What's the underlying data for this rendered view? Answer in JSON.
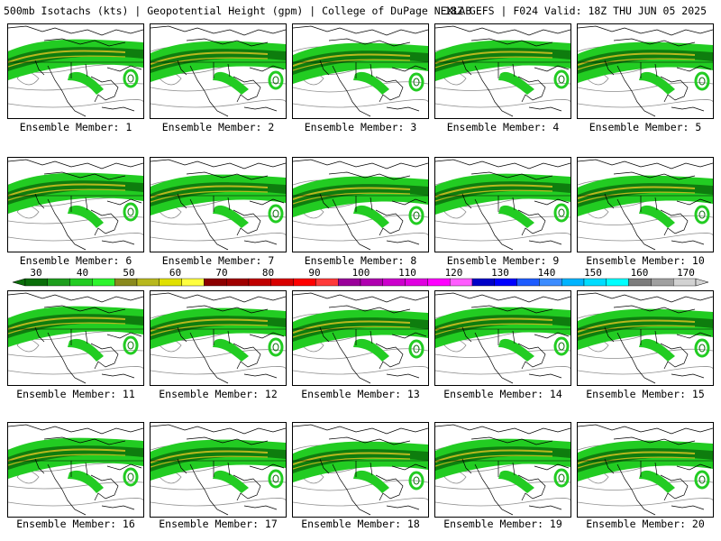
{
  "header": {
    "left_title": "500mb Isotachs (kts) | Geopotential Height (gpm) | College of DuPage NEXLAB",
    "right_title": "18Z GEFS | F024 Valid: 18Z THU JUN 05 2025"
  },
  "panels": [
    {
      "label": "Ensemble Member: 1"
    },
    {
      "label": "Ensemble Member: 2"
    },
    {
      "label": "Ensemble Member: 3"
    },
    {
      "label": "Ensemble Member: 4"
    },
    {
      "label": "Ensemble Member: 5"
    },
    {
      "label": "Ensemble Member: 6"
    },
    {
      "label": "Ensemble Member: 7"
    },
    {
      "label": "Ensemble Member: 8"
    },
    {
      "label": "Ensemble Member: 9"
    },
    {
      "label": "Ensemble Member: 10"
    },
    {
      "label": "Ensemble Member: 11"
    },
    {
      "label": "Ensemble Member: 12"
    },
    {
      "label": "Ensemble Member: 13"
    },
    {
      "label": "Ensemble Member: 14"
    },
    {
      "label": "Ensemble Member: 15"
    },
    {
      "label": "Ensemble Member: 16"
    },
    {
      "label": "Ensemble Member: 17"
    },
    {
      "label": "Ensemble Member: 18"
    },
    {
      "label": "Ensemble Member: 19"
    },
    {
      "label": "Ensemble Member: 20"
    }
  ],
  "colorbar": {
    "labels": [
      "30",
      "40",
      "50",
      "60",
      "70",
      "80",
      "90",
      "100",
      "110",
      "120",
      "130",
      "140",
      "150",
      "160",
      "170"
    ],
    "colors": [
      "#0a6e0a",
      "#1e9e1e",
      "#22cc22",
      "#2df52d",
      "#8a8a1e",
      "#b8b81e",
      "#e0e000",
      "#ffff40",
      "#8c0000",
      "#a00000",
      "#c00000",
      "#d80000",
      "#ff0000",
      "#ff3a3a",
      "#9a009a",
      "#b000b0",
      "#cc00cc",
      "#e000e0",
      "#ff00ff",
      "#ff5cff",
      "#0000c8",
      "#0000ff",
      "#1e5cff",
      "#3c8cff",
      "#00b4ff",
      "#00dcff",
      "#00ffff",
      "#7d7d7d",
      "#a0a0a0",
      "#d2d2d2"
    ]
  },
  "map_colors": {
    "jet_light": "#22cc22",
    "jet_dark": "#0a6e0a",
    "jet_core": "#b8b81e",
    "contour": "#8c8c8c",
    "coast": "#000000"
  }
}
